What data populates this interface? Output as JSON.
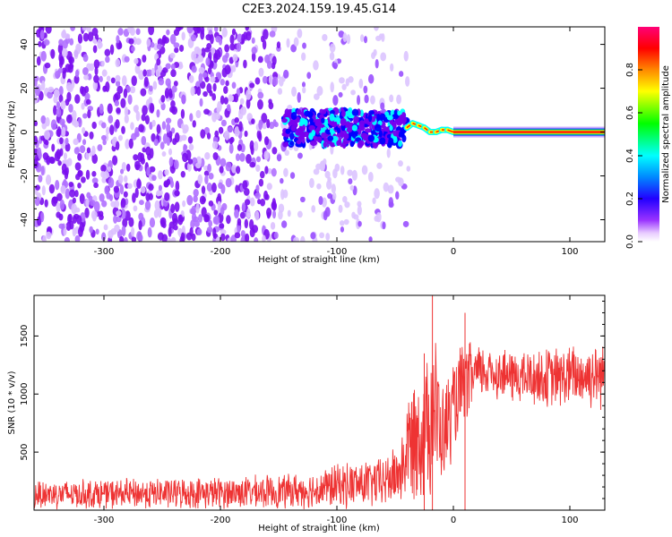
{
  "title": "C2E3.2024.159.19.45.G14",
  "chart_data": [
    {
      "type": "heatmap",
      "xlabel": "Height of straight line (km)",
      "ylabel": "Frequency (Hz)",
      "xlim": [
        -360,
        130
      ],
      "ylim": [
        -50,
        48
      ],
      "xticks": [
        -300,
        -200,
        -100,
        0,
        100
      ],
      "yticks": [
        -40,
        -20,
        0,
        20,
        40
      ],
      "colorbar": {
        "label": "Normalized spectral amplitude",
        "range": [
          0,
          1
        ],
        "ticks": [
          "0.0",
          "0.2",
          "0.4",
          "0.6",
          "0.8"
        ],
        "colors": [
          "#ffffff",
          "#cc88ff",
          "#7700ee",
          "#0000ff",
          "#00ffff",
          "#00ff00",
          "#ffff00",
          "#ff8800",
          "#ff0000",
          "#ff0088"
        ]
      },
      "features": [
        {
          "x_range": [
            -360,
            -145
          ],
          "description_level": 0.1,
          "freq_range": [
            -50,
            48
          ]
        },
        {
          "x_range": [
            -145,
            -60
          ],
          "description_level": 0.05,
          "freq_range": [
            -50,
            48
          ]
        },
        {
          "x_range": [
            -145,
            -45
          ],
          "description_level": 0.3,
          "freq_range": [
            -12,
            10
          ]
        },
        {
          "x_range": [
            -40,
            130
          ],
          "description_level": 0.95,
          "freq_range": [
            -1,
            1
          ]
        }
      ]
    },
    {
      "type": "line",
      "xlabel": "Height of straight line (km)",
      "ylabel": "SNR (10 * v/v)",
      "xlim": [
        -360,
        130
      ],
      "ylim": [
        0,
        1850
      ],
      "xticks": [
        -300,
        -200,
        -100,
        0,
        100
      ],
      "yticks": [
        500,
        1000,
        1500
      ],
      "color": "#ee3333",
      "envelope": {
        "x": [
          -360,
          -300,
          -200,
          -150,
          -120,
          -100,
          -80,
          -60,
          -45,
          -35,
          -25,
          -18,
          -10,
          0,
          10,
          20,
          30,
          50,
          80,
          100,
          130
        ],
        "y_low": [
          0,
          0,
          0,
          0,
          0,
          0,
          0,
          0,
          20,
          50,
          40,
          50,
          150,
          400,
          700,
          900,
          950,
          900,
          850,
          850,
          850
        ],
        "y_high": [
          280,
          280,
          300,
          320,
          350,
          420,
          450,
          480,
          650,
          1250,
          1300,
          1850,
          1100,
          1350,
          1500,
          1450,
          1450,
          1400,
          1420,
          1450,
          1500
        ]
      }
    }
  ]
}
